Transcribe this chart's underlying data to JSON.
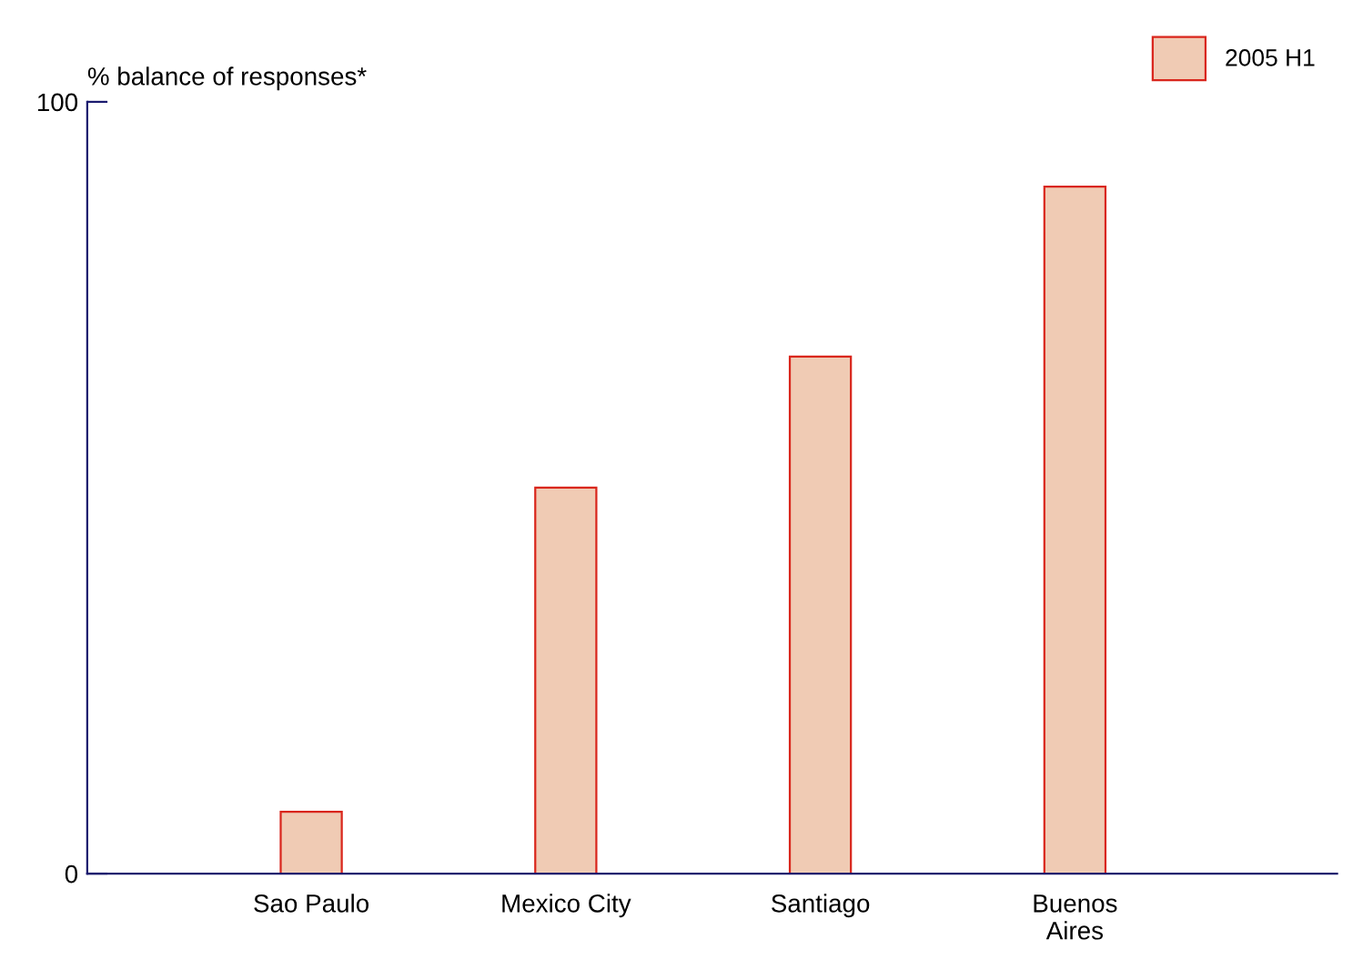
{
  "chart_data": {
    "type": "bar",
    "ylabel": "% balance of responses*",
    "categories": [
      "Sao Paulo",
      "Mexico City",
      "Santiago",
      "Buenos\nAires"
    ],
    "series": [
      {
        "name": "2005 H1",
        "color": "#f0cbb4",
        "values": [
          8,
          50,
          67,
          89
        ]
      }
    ],
    "ylim": [
      0,
      100
    ],
    "yticks": [
      0,
      100
    ],
    "grid": false,
    "legend": "top right"
  }
}
